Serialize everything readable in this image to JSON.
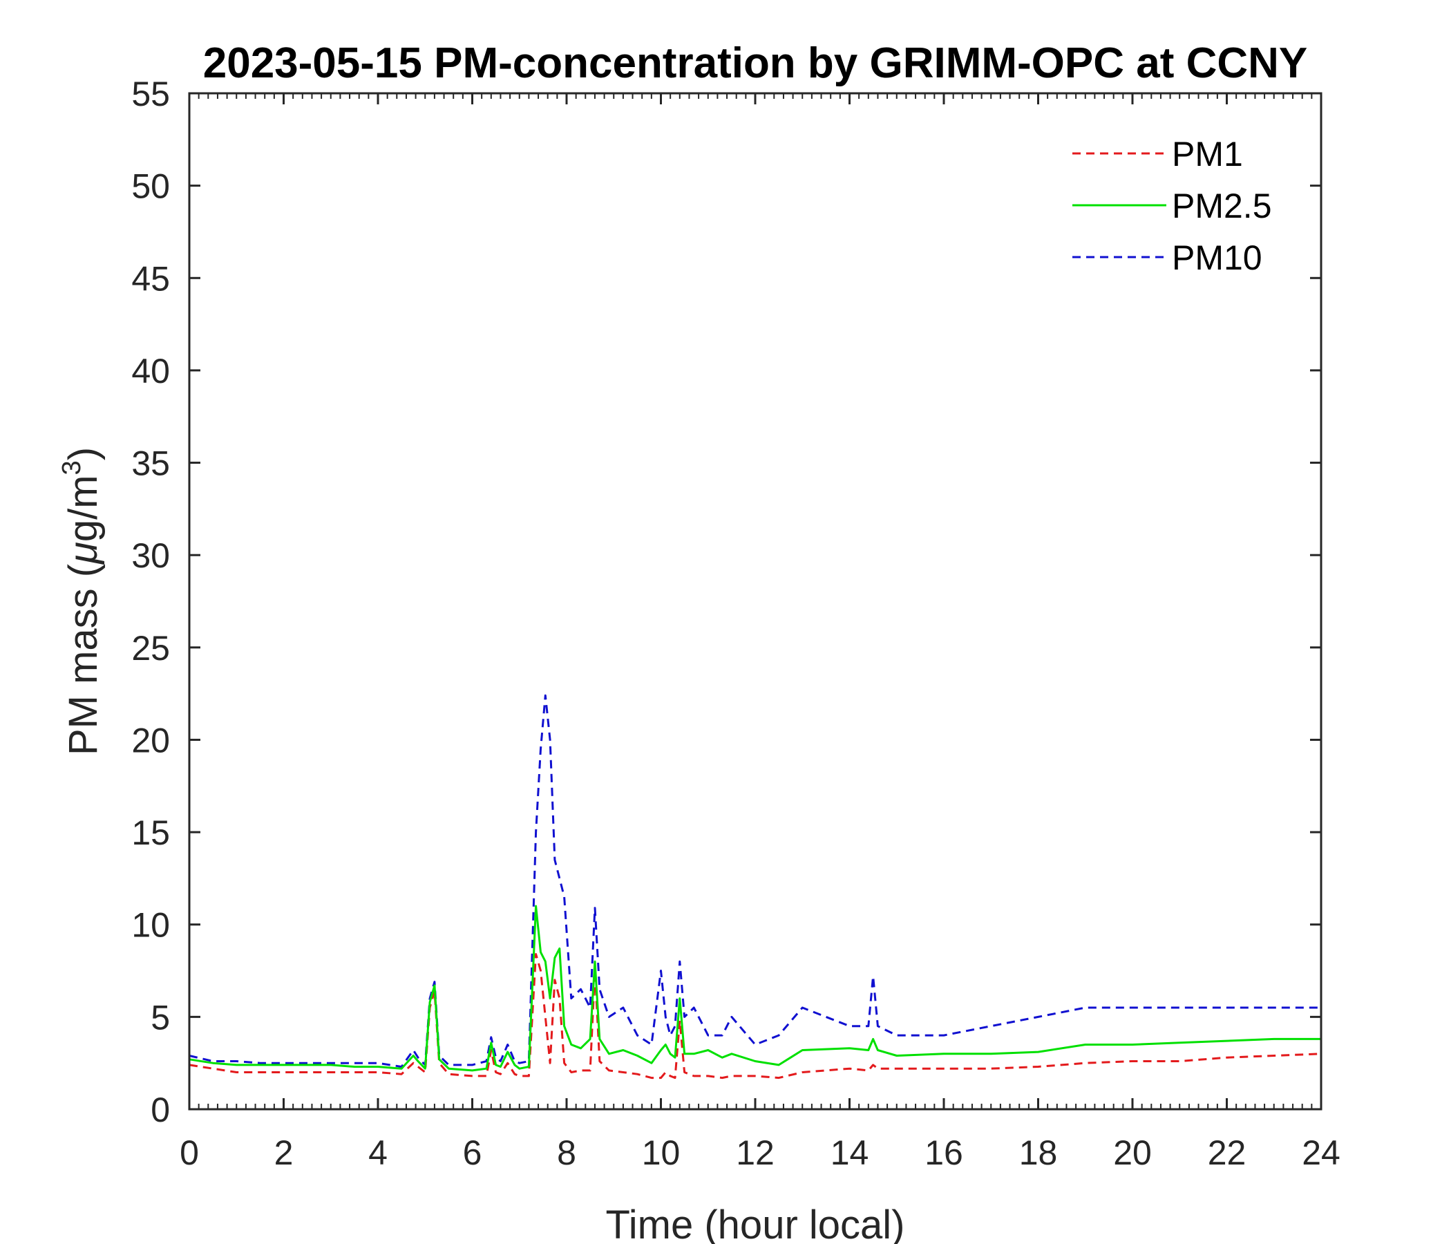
{
  "chart_data": {
    "type": "line",
    "title": "2023-05-15 PM-concentration by GRIMM-OPC at CCNY",
    "xlabel": "Time (hour local)",
    "ylabel_main": "PM mass (",
    "ylabel_mu": "μ",
    "ylabel_unit": "g/m",
    "ylabel_sup": "3",
    "ylabel_close": ")",
    "xlim": [
      0,
      24
    ],
    "ylim": [
      0,
      55
    ],
    "xticks": [
      "0",
      "2",
      "4",
      "6",
      "8",
      "10",
      "12",
      "14",
      "16",
      "18",
      "20",
      "22",
      "24"
    ],
    "yticks": [
      "0",
      "5",
      "10",
      "15",
      "20",
      "25",
      "30",
      "35",
      "40",
      "45",
      "50",
      "55"
    ],
    "grid": false,
    "legend_position": "top-right",
    "series": [
      {
        "name": "PM1",
        "color": "#e31a1c",
        "style": "dashed",
        "x": [
          0,
          0.5,
          1,
          1.5,
          2,
          2.5,
          3,
          3.5,
          4,
          4.5,
          4.75,
          4.85,
          5.0,
          5.1,
          5.2,
          5.3,
          5.5,
          6.0,
          6.3,
          6.4,
          6.5,
          6.6,
          6.75,
          6.9,
          7.0,
          7.2,
          7.35,
          7.45,
          7.55,
          7.65,
          7.75,
          7.85,
          7.95,
          8.1,
          8.3,
          8.5,
          8.6,
          8.7,
          8.9,
          9.2,
          9.5,
          9.8,
          10.0,
          10.1,
          10.2,
          10.3,
          10.4,
          10.5,
          10.7,
          11.0,
          11.3,
          11.5,
          12.0,
          12.5,
          13.0,
          14.0,
          14.4,
          14.5,
          14.6,
          15.0,
          16.0,
          17.0,
          18.0,
          19.0,
          20.0,
          21.0,
          22.0,
          23.0,
          24.0
        ],
        "y": [
          2.4,
          2.2,
          2.0,
          2.0,
          2.0,
          2.0,
          2.0,
          2.0,
          2.0,
          1.9,
          2.5,
          2.3,
          2.0,
          5.5,
          6.4,
          2.5,
          1.9,
          1.8,
          1.8,
          3.2,
          2.0,
          1.9,
          2.5,
          1.9,
          1.8,
          1.8,
          8.4,
          7.5,
          5.0,
          2.5,
          7.0,
          6.0,
          2.5,
          2.0,
          2.1,
          2.1,
          7.5,
          2.6,
          2.1,
          2.0,
          1.9,
          1.7,
          1.7,
          2.0,
          1.8,
          1.7,
          4.8,
          2.0,
          1.8,
          1.8,
          1.7,
          1.8,
          1.8,
          1.7,
          2.0,
          2.2,
          2.1,
          2.4,
          2.2,
          2.2,
          2.2,
          2.2,
          2.3,
          2.5,
          2.6,
          2.6,
          2.8,
          2.9,
          3.0
        ]
      },
      {
        "name": "PM2.5",
        "color": "#00e000",
        "style": "solid",
        "x": [
          0,
          0.5,
          1,
          1.5,
          2,
          2.5,
          3,
          3.5,
          4,
          4.5,
          4.75,
          4.85,
          5.0,
          5.1,
          5.2,
          5.3,
          5.5,
          6.0,
          6.3,
          6.4,
          6.5,
          6.6,
          6.75,
          6.9,
          7.0,
          7.2,
          7.35,
          7.45,
          7.55,
          7.65,
          7.75,
          7.85,
          7.95,
          8.1,
          8.3,
          8.5,
          8.6,
          8.7,
          8.9,
          9.2,
          9.5,
          9.8,
          10.0,
          10.1,
          10.2,
          10.3,
          10.4,
          10.5,
          10.7,
          11.0,
          11.3,
          11.5,
          12.0,
          12.5,
          13.0,
          14.0,
          14.4,
          14.5,
          14.6,
          15.0,
          16.0,
          17.0,
          18.0,
          19.0,
          20.0,
          21.0,
          22.0,
          23.0,
          24.0
        ],
        "y": [
          2.7,
          2.5,
          2.4,
          2.4,
          2.4,
          2.4,
          2.4,
          2.3,
          2.3,
          2.2,
          2.9,
          2.6,
          2.2,
          5.8,
          6.7,
          2.7,
          2.2,
          2.1,
          2.2,
          3.6,
          2.4,
          2.3,
          3.1,
          2.4,
          2.2,
          2.3,
          11.0,
          8.5,
          8.0,
          6.0,
          8.2,
          8.7,
          4.5,
          3.5,
          3.3,
          3.8,
          8.0,
          3.8,
          3.0,
          3.2,
          2.9,
          2.5,
          3.2,
          3.5,
          3.0,
          2.8,
          6.0,
          3.0,
          3.0,
          3.2,
          2.8,
          3.0,
          2.6,
          2.4,
          3.2,
          3.3,
          3.2,
          3.8,
          3.2,
          2.9,
          3.0,
          3.0,
          3.1,
          3.5,
          3.5,
          3.6,
          3.7,
          3.8,
          3.8
        ]
      },
      {
        "name": "PM10",
        "color": "#1010d0",
        "style": "dashed",
        "x": [
          0,
          0.5,
          1,
          1.5,
          2,
          2.5,
          3,
          3.5,
          4,
          4.5,
          4.75,
          4.85,
          5.0,
          5.1,
          5.2,
          5.3,
          5.5,
          6.0,
          6.3,
          6.4,
          6.5,
          6.6,
          6.75,
          6.9,
          7.0,
          7.2,
          7.35,
          7.45,
          7.55,
          7.65,
          7.75,
          7.85,
          7.95,
          8.1,
          8.3,
          8.5,
          8.6,
          8.7,
          8.9,
          9.2,
          9.5,
          9.8,
          10.0,
          10.1,
          10.2,
          10.3,
          10.4,
          10.5,
          10.7,
          11.0,
          11.3,
          11.5,
          12.0,
          12.5,
          13.0,
          14.0,
          14.4,
          14.5,
          14.6,
          15.0,
          16.0,
          17.0,
          18.0,
          19.0,
          20.0,
          21.0,
          22.0,
          23.0,
          24.0
        ],
        "y": [
          2.9,
          2.6,
          2.6,
          2.5,
          2.5,
          2.5,
          2.5,
          2.5,
          2.5,
          2.3,
          3.2,
          2.8,
          2.4,
          6.0,
          6.9,
          2.9,
          2.4,
          2.4,
          2.6,
          3.9,
          2.8,
          2.6,
          3.5,
          2.6,
          2.5,
          2.6,
          15.0,
          19.5,
          22.4,
          20.0,
          13.5,
          12.5,
          11.5,
          6.0,
          6.5,
          5.5,
          10.9,
          6.5,
          5.0,
          5.5,
          4.0,
          3.5,
          7.5,
          5.0,
          4.0,
          4.5,
          8.0,
          5.0,
          5.5,
          4.0,
          4.0,
          5.0,
          3.5,
          4.0,
          5.5,
          4.5,
          4.5,
          7.2,
          4.5,
          4.0,
          4.0,
          4.5,
          5.0,
          5.5,
          5.5,
          5.5,
          5.5,
          5.5,
          5.5
        ]
      }
    ]
  }
}
